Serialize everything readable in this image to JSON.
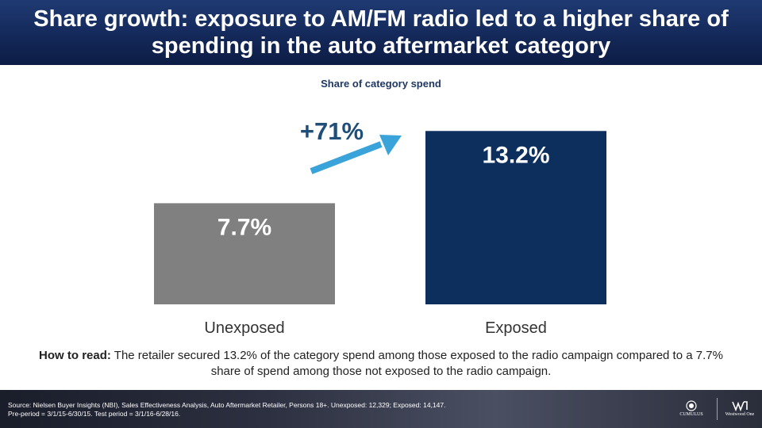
{
  "title": "Share growth: exposure to AM/FM radio led to a higher share of spending in the auto aftermarket category",
  "chart_data": {
    "type": "bar",
    "title": "Share of category spend",
    "categories": [
      "Unexposed",
      "Exposed"
    ],
    "values": [
      7.7,
      13.2
    ],
    "value_labels": [
      "7.7%",
      "13.2%"
    ],
    "colors": [
      "#808080",
      "#0d2f5e"
    ],
    "ylim": [
      0,
      14
    ],
    "grid": false,
    "annotation": {
      "text": "+71%",
      "color": "#1f4e79",
      "arrow_color": "#3aa3d9"
    }
  },
  "how_to_read": {
    "label": "How to read:",
    "text": " The retailer secured 13.2% of the category spend among those exposed to the radio campaign compared to a 7.7% share of spend among those not exposed to the radio campaign."
  },
  "footer": {
    "source_line1": "Source: Nielsen Buyer Insights (NBI), Sales Effectiveness Analysis, Auto Aftermarket Retailer, Persons 18+. Unexposed: 12,329; Exposed: 14,147.",
    "source_line2": "Pre-period = 3/1/15-6/30/15. Test period = 3/1/16-6/28/16.",
    "logo_left": "CUMULUS",
    "logo_right": "Westwood One"
  }
}
